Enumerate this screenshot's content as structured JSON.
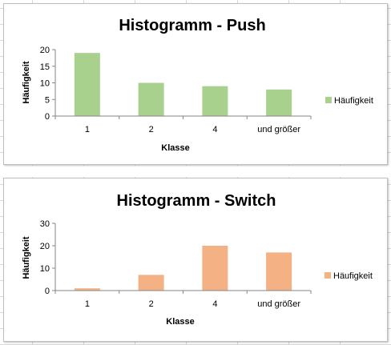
{
  "chart_data": [
    {
      "type": "bar",
      "title": "Histogramm - Push",
      "xlabel": "Klasse",
      "ylabel": "Häufigkeit",
      "categories": [
        "1",
        "2",
        "4",
        "und größer"
      ],
      "series": [
        {
          "name": "Häufigkeit",
          "values": [
            19,
            10,
            9,
            8
          ],
          "color": "#a9d18e"
        }
      ],
      "ylim": [
        0,
        20
      ],
      "yticks": [
        "0",
        "5",
        "10",
        "15",
        "20"
      ],
      "grid": false,
      "legend": "right"
    },
    {
      "type": "bar",
      "title": "Histogramm - Switch",
      "xlabel": "Klasse",
      "ylabel": "Häufigkeit",
      "categories": [
        "1",
        "2",
        "4",
        "und größer"
      ],
      "series": [
        {
          "name": "Häufigkeit",
          "values": [
            1,
            7,
            20,
            17
          ],
          "color": "#f4b183"
        }
      ],
      "ylim": [
        0,
        30
      ],
      "yticks": [
        "0",
        "10",
        "20",
        "30"
      ],
      "grid": false,
      "legend": "right"
    }
  ]
}
